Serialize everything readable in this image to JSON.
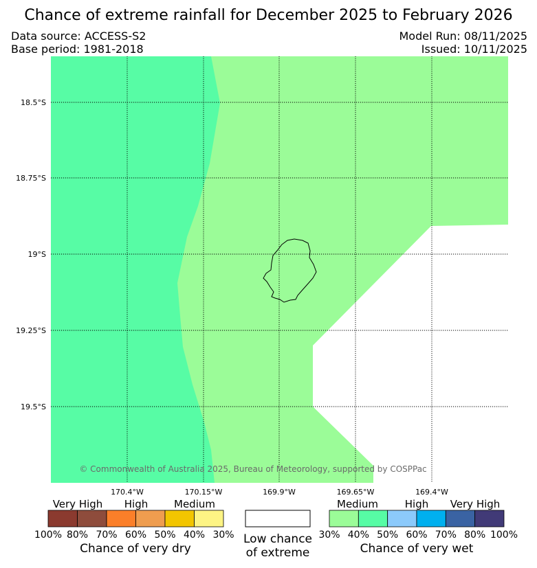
{
  "header": {
    "title": "Chance of extreme rainfall for December 2025 to February 2026",
    "data_source": "Data source: ACCESS-S2",
    "base_period": "Base period: 1981-2018",
    "model_run": "Model Run: 08/11/2025",
    "issued": "Issued: 10/11/2025"
  },
  "map": {
    "lat_labels": [
      "18.5°S",
      "18.75°S",
      "19°S",
      "19.25°S",
      "19.5°S"
    ],
    "lon_labels": [
      "170.4°W",
      "170.15°W",
      "169.9°W",
      "169.65°W",
      "169.4°W"
    ],
    "credit": "© Commonwealth of Australia 2025, Bureau of Meteorology, supported by COSPPac",
    "colors": {
      "wet_medium_40_50": "#57fca5",
      "wet_medium_30_40": "#9bfc98",
      "low_chance": "#ffffff"
    }
  },
  "legend": {
    "dry": {
      "category_labels": [
        "Very High",
        "High",
        "Medium"
      ],
      "colors": [
        "#8b3a2f",
        "#8e4c3c",
        "#fb7f29",
        "#ef9d4f",
        "#f2c500",
        "#fdf484"
      ],
      "ticks": [
        "100%",
        "80%",
        "70%",
        "60%",
        "50%",
        "40%",
        "30%"
      ],
      "caption": "Chance of very dry"
    },
    "low": {
      "line1": "Low chance",
      "line2": "of extreme",
      "color": "#ffffff"
    },
    "wet": {
      "category_labels": [
        "Medium",
        "High",
        "Very High"
      ],
      "colors": [
        "#9bfc98",
        "#57fca5",
        "#8ccafb",
        "#00b0ef",
        "#3a63a3",
        "#413a77"
      ],
      "ticks": [
        "30%",
        "40%",
        "50%",
        "60%",
        "70%",
        "80%",
        "100%"
      ],
      "caption": "Chance of very wet"
    }
  }
}
